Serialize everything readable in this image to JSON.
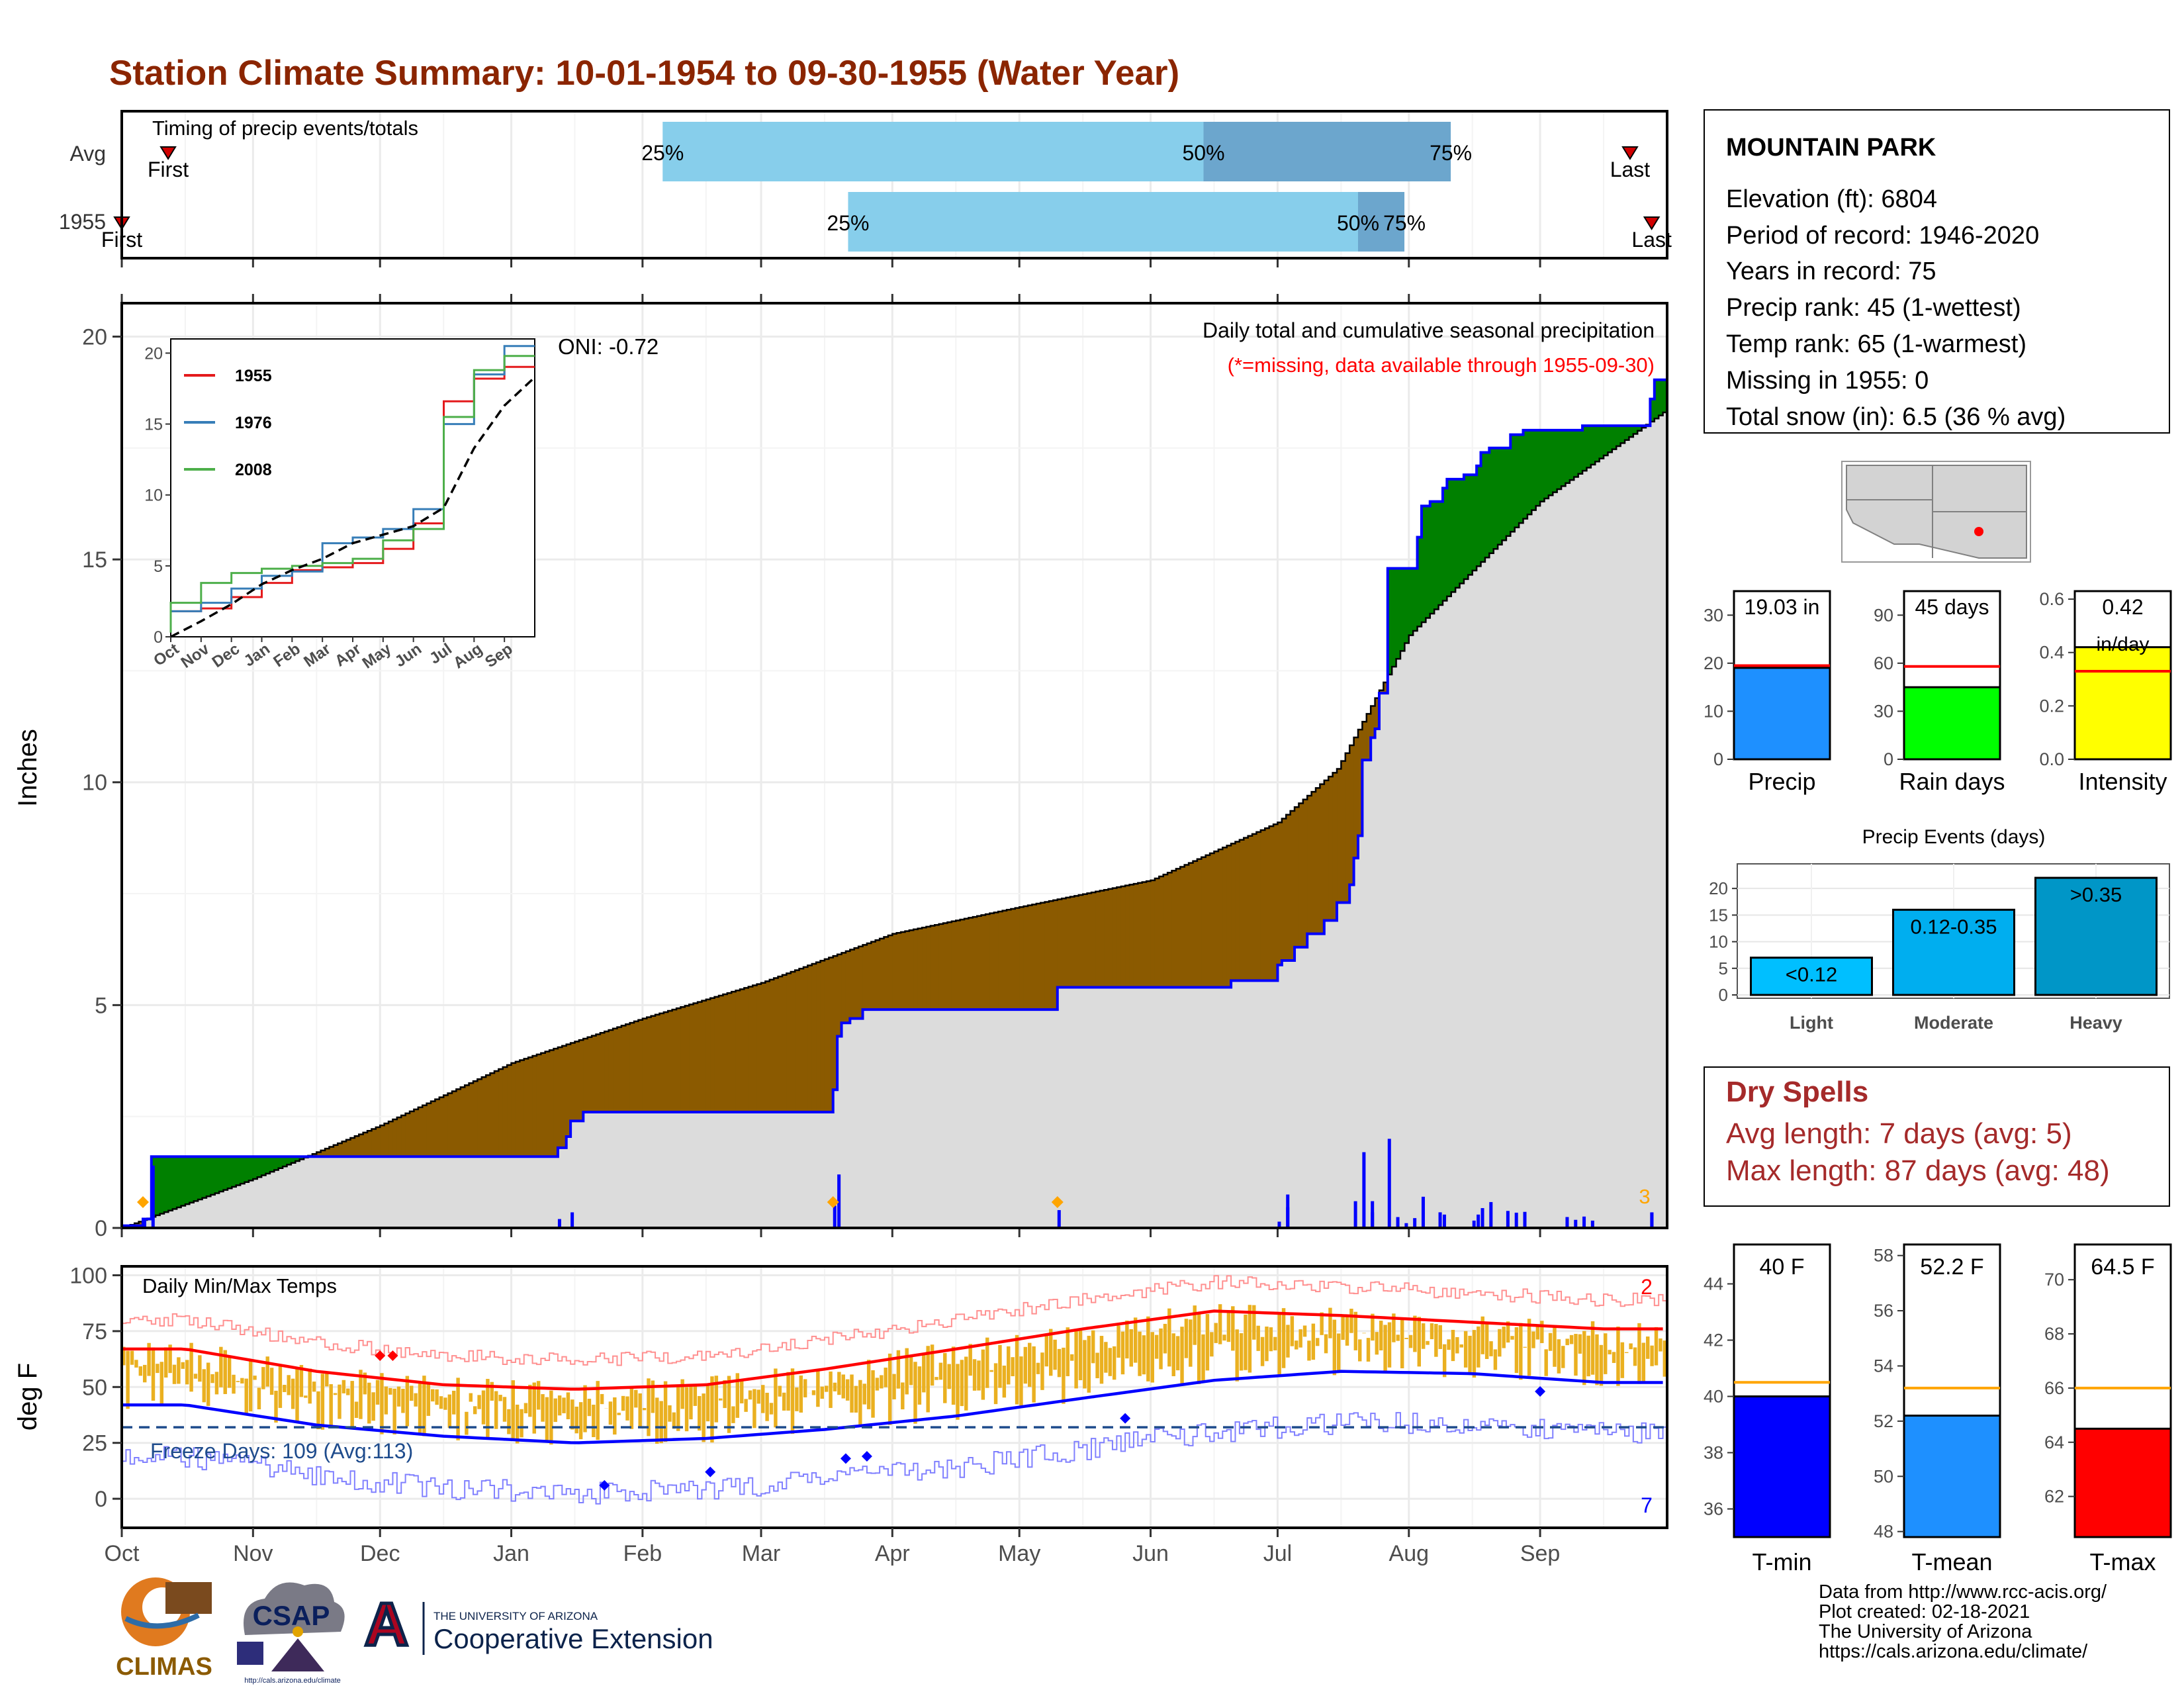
{
  "title": "Station Climate Summary: 10-01-1954 to 09-30-1955 (Water Year)",
  "colors": {
    "title": "#8B2500",
    "dry_spells": "#A52A2A",
    "above_avg_fill": "#008000",
    "below_avg_fill": "#8B5A00",
    "climo_fill": "#DCDCDC",
    "observed_line": "#0000FF",
    "daily_bars": "#0000FF",
    "temp_bars": "#EAB020",
    "tmax_line": "#FF0000",
    "tmin_line": "#0000FF",
    "freeze_line": "#1E4B8C",
    "timing_light": "#87CEEB",
    "timing_dark": "#6CA6CD"
  },
  "timing_panel": {
    "label": "Timing of precip events/totals",
    "rows": [
      {
        "name": "Avg",
        "first_label": "First",
        "last_label": "Last",
        "first_frac": 0.03,
        "last_frac": 0.976,
        "p25": 0.35,
        "p50": 0.7,
        "p75": 0.86,
        "p25_label": "25%",
        "p50_label": "50%",
        "p75_label": "75%"
      },
      {
        "name": "1955",
        "first_label": "First",
        "last_label": "Last",
        "first_frac": 0.0,
        "last_frac": 0.99,
        "p25": 0.47,
        "p50": 0.8,
        "p75": 0.83,
        "p25_label": "25%",
        "p50_label": "50%",
        "p75_label": "75%"
      }
    ]
  },
  "precip_panel": {
    "header": "Daily total and cumulative seasonal precipitation",
    "missing_note": "(*=missing, data available through 1955-09-30)",
    "oni": "ONI: -0.72",
    "ylabel": "Inches",
    "yticks": [
      "0",
      "5",
      "10",
      "15",
      "20"
    ],
    "missing_count": "3"
  },
  "inset": {
    "legend": [
      {
        "name": "1955",
        "color": "#E41A1C"
      },
      {
        "name": "1976",
        "color": "#377EB8"
      },
      {
        "name": "2008",
        "color": "#4DAF4A"
      }
    ],
    "yticks": [
      "0",
      "5",
      "10",
      "15",
      "20"
    ],
    "xticks": [
      "Oct",
      "Nov",
      "Dec",
      "Jan",
      "Feb",
      "Mar",
      "Apr",
      "May",
      "Jun",
      "Jul",
      "Aug",
      "Sep"
    ]
  },
  "temp_panel": {
    "label": "Daily Min/Max Temps",
    "ylabel": "deg F",
    "yticks": [
      "0",
      "25",
      "50",
      "75",
      "100"
    ],
    "freeze_text": "Freeze Days: 109 (Avg:113)",
    "tmax_count": "2",
    "tmin_count": "7"
  },
  "months": [
    "Oct",
    "Nov",
    "Dec",
    "Jan",
    "Feb",
    "Mar",
    "Apr",
    "May",
    "Jun",
    "Jul",
    "Aug",
    "Sep"
  ],
  "station": {
    "name": "MOUNTAIN PARK",
    "lines": [
      "Elevation (ft): 6804",
      "Period of record: 1946-2020",
      "Years in record: 75",
      "Precip rank: 45 (1-wettest)",
      "Temp rank: 65 (1-warmest)",
      "Missing in 1955: 0",
      "Total snow (in): 6.5 (36 % avg)"
    ]
  },
  "small_bars": {
    "precip": {
      "label": "Precip",
      "value_label": "19.03 in",
      "value": 19.03,
      "avg": 19.5,
      "ymax": 35,
      "ticks": [
        "0",
        "10",
        "20",
        "30"
      ],
      "color": "#1E90FF"
    },
    "rain_days": {
      "label": "Rain days",
      "value_label": "45 days",
      "value": 45,
      "avg": 58,
      "ymax": 105,
      "ticks": [
        "0",
        "30",
        "60",
        "90"
      ],
      "color": "#00FF00"
    },
    "intensity": {
      "label": "Intensity",
      "value_label": "0.42",
      "value_sublabel": "in/day",
      "value": 0.42,
      "avg": 0.33,
      "ymax": 0.63,
      "ticks": [
        "0.0",
        "0.2",
        "0.4",
        "0.6"
      ],
      "color": "#FFFF00"
    }
  },
  "precip_events": {
    "title": "Precip Events (days)",
    "yticks": [
      "0",
      "5",
      "10",
      "15",
      "20"
    ],
    "bars": [
      {
        "category": "Light",
        "range": "<0.12",
        "value": 7,
        "color": "#00BFFF"
      },
      {
        "category": "Moderate",
        "range": "0.12-0.35",
        "value": 16,
        "color": "#00AEEF"
      },
      {
        "category": "Heavy",
        "range": ">0.35",
        "value": 22,
        "color": "#0096C7"
      }
    ]
  },
  "dry_spells": {
    "title": "Dry Spells",
    "avg_line": "Avg length: 7 days (avg: 5)",
    "max_line": "Max length: 87 days (avg: 48)"
  },
  "temp_bars": {
    "tmin": {
      "label": "T-min",
      "value_label": "40 F",
      "value": 40,
      "avg": 40.5,
      "ymin": 35,
      "ymax": 45.4,
      "ticks": [
        "36",
        "38",
        "40",
        "42",
        "44"
      ],
      "color": "#0000FF"
    },
    "tmean": {
      "label": "T-mean",
      "value_label": "52.2 F",
      "value": 52.2,
      "avg": 53.2,
      "ymin": 47.8,
      "ymax": 58.4,
      "ticks": [
        "48",
        "50",
        "52",
        "54",
        "56",
        "58"
      ],
      "color": "#1E90FF"
    },
    "tmax": {
      "label": "T-max",
      "value_label": "64.5 F",
      "value": 64.5,
      "avg": 66,
      "ymin": 60.5,
      "ymax": 71.3,
      "ticks": [
        "62",
        "64",
        "66",
        "68",
        "70"
      ],
      "color": "#FF0000"
    }
  },
  "logos": {
    "climas": "CLIMAS",
    "csap": "CSAP",
    "csap_url": "http://cals.arizona.edu/climate",
    "ua_top": "THE UNIVERSITY OF ARIZONA",
    "ua_bottom": "Cooperative Extension",
    "ua_letter": "A"
  },
  "footer": [
    "Data from http://www.rcc-acis.org/",
    "Plot created: 02-18-2021",
    "The University of Arizona",
    "https://cals.arizona.edu/climate/"
  ],
  "chart_data": {
    "type": "area",
    "title": "Station Climate Summary: 10-01-1954 to 09-30-1955 (Water Year)",
    "cumulative_precip_observed": {
      "x": [
        "1954-10-01",
        "1954-10-06",
        "1954-10-08",
        "1954-11-01",
        "1954-12-31",
        "1955-01-12",
        "1955-01-14",
        "1955-01-15",
        "1955-01-18",
        "1955-03-18",
        "1955-03-19",
        "1955-03-20",
        "1955-03-22",
        "1955-03-25",
        "1955-05-10",
        "1955-06-20",
        "1955-07-01",
        "1955-07-02",
        "1955-07-05",
        "1955-07-08",
        "1955-07-12",
        "1955-07-15",
        "1955-07-18",
        "1955-07-19",
        "1955-07-20",
        "1955-07-21",
        "1955-07-23",
        "1955-07-24",
        "1955-07-25",
        "1955-07-27",
        "1955-08-03",
        "1955-08-04",
        "1955-08-06",
        "1955-08-09",
        "1955-08-10",
        "1955-08-14",
        "1955-08-17",
        "1955-08-18",
        "1955-08-20",
        "1955-08-25",
        "1955-08-28",
        "1955-09-11",
        "1955-09-27",
        "1955-09-28"
      ],
      "y": [
        0.05,
        0.2,
        1.6,
        1.6,
        1.6,
        1.8,
        2.05,
        2.4,
        2.6,
        3.1,
        4.3,
        4.6,
        4.7,
        4.9,
        5.4,
        5.55,
        5.9,
        6.0,
        6.3,
        6.6,
        6.9,
        7.3,
        7.7,
        8.3,
        8.8,
        10.5,
        11.0,
        11.2,
        12.0,
        14.8,
        15.5,
        16.2,
        16.3,
        16.6,
        16.8,
        16.9,
        17.1,
        17.4,
        17.5,
        17.8,
        17.9,
        18.0,
        18.6,
        19.03
      ]
    },
    "cumulative_precip_climo": {
      "x": [
        "1954-10-01",
        "1954-11-01",
        "1954-12-01",
        "1955-01-01",
        "1955-02-01",
        "1955-03-01",
        "1955-04-01",
        "1955-05-01",
        "1955-06-01",
        "1955-07-01",
        "1955-07-15",
        "1955-08-01",
        "1955-09-01",
        "1955-09-30"
      ],
      "y": [
        0.0,
        1.1,
        2.3,
        3.7,
        4.7,
        5.5,
        6.6,
        7.2,
        7.8,
        9.1,
        10.3,
        13.3,
        16.3,
        18.3
      ]
    },
    "daily_precip": {
      "x": [
        "1954-10-06",
        "1954-10-08",
        "1955-01-12",
        "1955-01-15",
        "1955-03-18",
        "1955-03-19",
        "1955-05-10",
        "1955-07-03",
        "1955-07-19",
        "1955-07-21",
        "1955-07-23",
        "1955-07-27",
        "1955-08-04",
        "1955-08-09",
        "1955-08-17",
        "1955-09-27"
      ],
      "y": [
        0.2,
        1.4,
        0.2,
        0.35,
        0.5,
        1.2,
        0.4,
        0.75,
        0.6,
        1.7,
        0.35,
        2.0,
        0.7,
        0.3,
        0.3,
        0.35
      ]
    },
    "inset_years": [
      {
        "name": "1955",
        "month_end_values": [
          1.7,
          1.8,
          2.0,
          2.8,
          3.8,
          4.7,
          4.9,
          5.2,
          6.2,
          8.0,
          16.6,
          18.2,
          19.03
        ]
      },
      {
        "name": "1976",
        "month_end_values": [
          0.4,
          1.8,
          2.4,
          3.4,
          4.3,
          4.6,
          6.6,
          7.0,
          7.6,
          9.0,
          15.0,
          18.5,
          20.5
        ]
      },
      {
        "name": "2008",
        "month_end_values": [
          0.3,
          2.4,
          3.8,
          4.5,
          4.8,
          5.0,
          5.2,
          5.5,
          6.8,
          7.6,
          15.5,
          18.8,
          19.8
        ]
      },
      {
        "name": "Average",
        "month_end_values": [
          0.0,
          1.1,
          2.3,
          3.7,
          4.7,
          5.5,
          6.6,
          7.2,
          7.8,
          9.1,
          13.3,
          16.3,
          18.3
        ]
      }
    ],
    "temperature": {
      "months": [
        "Oct",
        "Nov",
        "Dec",
        "Jan",
        "Feb",
        "Mar",
        "Apr",
        "May",
        "Jun",
        "Jul",
        "Aug",
        "Sep"
      ],
      "avg_tmax_monthly": [
        67,
        57,
        51,
        49,
        51,
        58,
        67,
        76,
        84,
        82,
        79,
        76
      ],
      "avg_tmin_monthly": [
        42,
        33,
        28,
        25,
        27,
        31,
        37,
        45,
        53,
        57,
        56,
        52
      ],
      "freeze_line": 32,
      "ylim": [
        -10,
        100
      ]
    }
  }
}
